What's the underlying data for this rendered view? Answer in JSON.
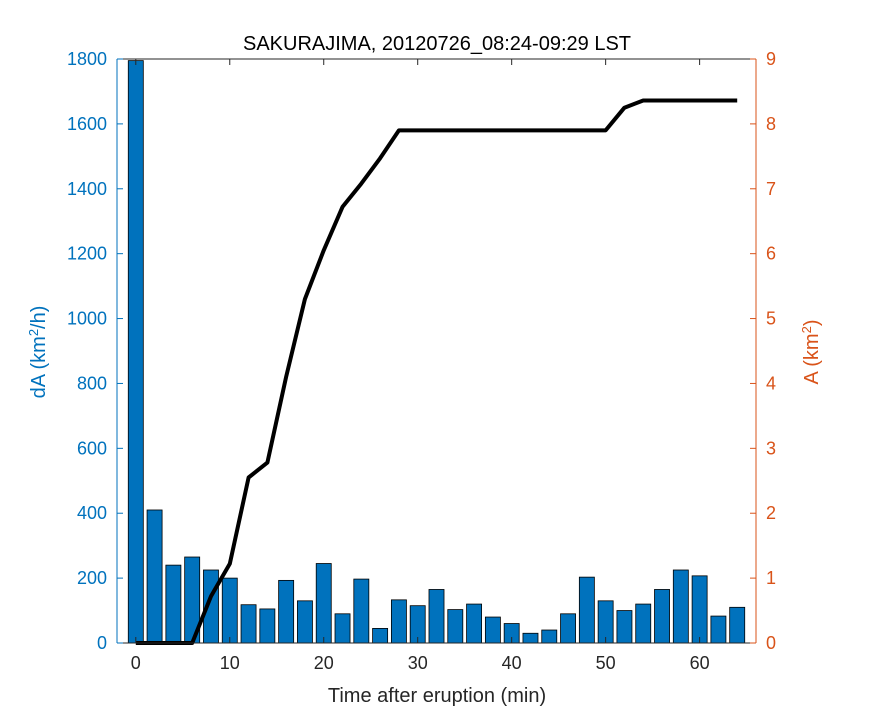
{
  "chart_data": {
    "type": "bar",
    "title": "SAKURAJIMA, 20120726_08:24-09:29 LST",
    "xlabel": "Time after eruption (min)",
    "ylabel_left_prefix": "dA (km",
    "ylabel_left_sup": "2",
    "ylabel_left_suffix": "/h)",
    "ylabel_right_prefix": "A (km",
    "ylabel_right_sup": "2",
    "ylabel_right_suffix": ")",
    "xlim": [
      -2,
      66
    ],
    "ylim_left": [
      0,
      1800
    ],
    "ylim_right": [
      0,
      9
    ],
    "xticks": [
      "0",
      "10",
      "20",
      "30",
      "40",
      "50",
      "60"
    ],
    "yticks_left": [
      "0",
      "200",
      "400",
      "600",
      "800",
      "1000",
      "1200",
      "1400",
      "1600",
      "1800"
    ],
    "yticks_right": [
      "0",
      "1",
      "2",
      "3",
      "4",
      "5",
      "6",
      "7",
      "8",
      "9"
    ],
    "grid": false,
    "colors": {
      "bars": "#0072BD",
      "left_axis": "#0072BD",
      "right_axis": "#D95319",
      "line": "#000000"
    },
    "bars": {
      "x": [
        0,
        2,
        4,
        6,
        8,
        10,
        12,
        14,
        16,
        18,
        20,
        22,
        24,
        26,
        28,
        30,
        32,
        34,
        36,
        38,
        40,
        42,
        44,
        46,
        48,
        50,
        52,
        54,
        56,
        58,
        60,
        62,
        64
      ],
      "values": [
        1795,
        410,
        240,
        265,
        225,
        200,
        118,
        105,
        193,
        130,
        245,
        90,
        197,
        45,
        133,
        115,
        165,
        103,
        120,
        80,
        60,
        30,
        40,
        90,
        203,
        130,
        100,
        120,
        165,
        225,
        207,
        83,
        110
      ]
    },
    "line": {
      "x": [
        0,
        2,
        4,
        6,
        8,
        10,
        12,
        14,
        16,
        18,
        20,
        22,
        24,
        26,
        28,
        30,
        32,
        34,
        36,
        38,
        40,
        42,
        44,
        46,
        48,
        50,
        52,
        54,
        56,
        58,
        60,
        62,
        64
      ],
      "values": [
        0,
        0,
        0,
        0,
        0.72,
        1.22,
        2.55,
        2.78,
        4.1,
        5.3,
        6.05,
        6.72,
        7.08,
        7.47,
        7.9,
        7.9,
        7.9,
        7.9,
        7.9,
        7.9,
        7.9,
        7.9,
        7.9,
        7.9,
        7.9,
        7.9,
        8.25,
        8.36,
        8.36,
        8.36,
        8.36,
        8.36,
        8.36
      ]
    }
  }
}
